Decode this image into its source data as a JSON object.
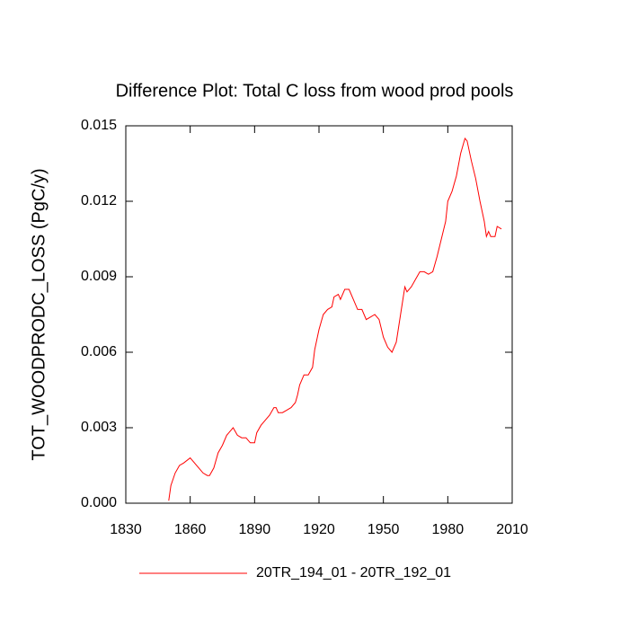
{
  "chart_data": {
    "type": "line",
    "title": "Difference Plot: Total C loss from wood prod pools",
    "y_label": "TOT_WOODPRODC_LOSS  (PgC/y)",
    "x": [
      1850,
      1851,
      1853,
      1855,
      1857,
      1860,
      1862,
      1864,
      1866,
      1868,
      1869,
      1871,
      1873,
      1875,
      1877,
      1879,
      1880,
      1882,
      1884,
      1886,
      1888,
      1890,
      1891,
      1893,
      1895,
      1897,
      1899,
      1900,
      1901,
      1903,
      1905,
      1907,
      1909,
      1910,
      1911,
      1913,
      1915,
      1917,
      1918,
      1920,
      1922,
      1924,
      1926,
      1927,
      1929,
      1930,
      1932,
      1934,
      1936,
      1938,
      1940,
      1942,
      1944,
      1946,
      1948,
      1950,
      1952,
      1954,
      1956,
      1958,
      1960,
      1961,
      1963,
      1965,
      1967,
      1969,
      1971,
      1973,
      1975,
      1977,
      1979,
      1980,
      1982,
      1984,
      1986,
      1988,
      1989,
      1991,
      1993,
      1995,
      1997,
      1998,
      1999,
      2000,
      2002,
      2003,
      2005
    ],
    "series": [
      {
        "name": "20TR_194_01 - 20TR_192_01",
        "color": "#ff0000",
        "values": [
          0.0001,
          0.0007,
          0.0012,
          0.0015,
          0.0016,
          0.0018,
          0.0016,
          0.0014,
          0.0012,
          0.0011,
          0.0011,
          0.0014,
          0.002,
          0.0023,
          0.0027,
          0.0029,
          0.003,
          0.0027,
          0.0026,
          0.0026,
          0.0024,
          0.0024,
          0.0028,
          0.0031,
          0.0033,
          0.0035,
          0.0038,
          0.0038,
          0.0036,
          0.0036,
          0.0037,
          0.0038,
          0.004,
          0.0043,
          0.0047,
          0.0051,
          0.0051,
          0.0054,
          0.0061,
          0.0069,
          0.0075,
          0.0077,
          0.0078,
          0.0082,
          0.0083,
          0.0081,
          0.0085,
          0.0085,
          0.0081,
          0.0077,
          0.0077,
          0.0073,
          0.0074,
          0.0075,
          0.0073,
          0.0066,
          0.0062,
          0.006,
          0.0064,
          0.0075,
          0.0086,
          0.0084,
          0.0086,
          0.0089,
          0.0092,
          0.0092,
          0.0091,
          0.0092,
          0.0098,
          0.0105,
          0.0112,
          0.012,
          0.0124,
          0.013,
          0.0139,
          0.0145,
          0.0144,
          0.0136,
          0.0129,
          0.012,
          0.0112,
          0.0106,
          0.0108,
          0.0106,
          0.0106,
          0.011,
          0.0109
        ]
      }
    ],
    "xlim": [
      1830,
      2010
    ],
    "xticks": [
      1830,
      1860,
      1890,
      1920,
      1950,
      1980,
      2010
    ],
    "ylim": [
      0,
      0.015
    ],
    "yticks": [
      {
        "value": 0,
        "label": "0.000"
      },
      {
        "value": 0.003,
        "label": "0.003"
      },
      {
        "value": 0.006,
        "label": "0.006"
      },
      {
        "value": 0.009,
        "label": "0.009"
      },
      {
        "value": 0.012,
        "label": "0.012"
      },
      {
        "value": 0.015,
        "label": "0.015"
      }
    ],
    "legend": "bottom"
  }
}
